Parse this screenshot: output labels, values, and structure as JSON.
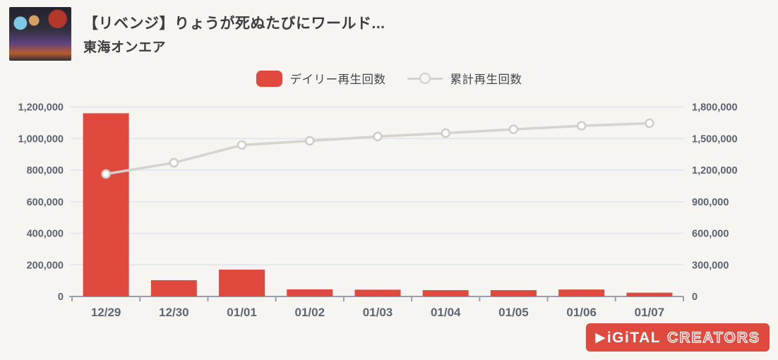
{
  "page": {
    "background_color": "#f7f5f1"
  },
  "header": {
    "video_title": "【リベンジ】りょうが死ぬたびにワールド...",
    "channel_name": "東海オンエア"
  },
  "legend": {
    "daily_label": "デイリー再生回数",
    "cumulative_label": "累計再生回数",
    "daily_color": "#e0493d",
    "cumulative_color": "#d6d3ce"
  },
  "chart_data": {
    "type": "bar",
    "subtype": "combo-bar-line-dual-axis",
    "categories": [
      "12/29",
      "12/30",
      "01/01",
      "01/02",
      "01/03",
      "01/04",
      "01/05",
      "01/06",
      "01/07"
    ],
    "series": [
      {
        "name": "デイリー再生回数",
        "type": "bar",
        "axis": "left",
        "color": "#e0493d",
        "values": [
          1160000,
          103000,
          170000,
          45000,
          43000,
          40000,
          40000,
          44000,
          24000
        ]
      },
      {
        "name": "累計再生回数",
        "type": "line",
        "axis": "right",
        "color": "#d6d3ce",
        "marker_fill": "#ffffff",
        "marker_stroke": "#d0cdc7",
        "values": [
          1163000,
          1270000,
          1438000,
          1478000,
          1519000,
          1551000,
          1587000,
          1621000,
          1645000
        ]
      }
    ],
    "left_axis": {
      "min": 0,
      "max": 1200000,
      "tick_labels": [
        "1,200,000",
        "1,000,000",
        "800,000",
        "600,000",
        "400,000",
        "200,000",
        "0"
      ]
    },
    "right_axis": {
      "min": 0,
      "max": 1800000,
      "tick_labels": [
        "1,800,000",
        "1,500,000",
        "1,200,000",
        "900,000",
        "600,000",
        "300,000",
        "0"
      ]
    },
    "grid": true,
    "legend_position": "top-center",
    "colors": {
      "grid": "#dfe4f0",
      "axis": "#9aa1ad"
    }
  },
  "logo": {
    "play_glyph": "▶",
    "digital_text": "iGiTAL",
    "creators_text": "CREATORS"
  }
}
